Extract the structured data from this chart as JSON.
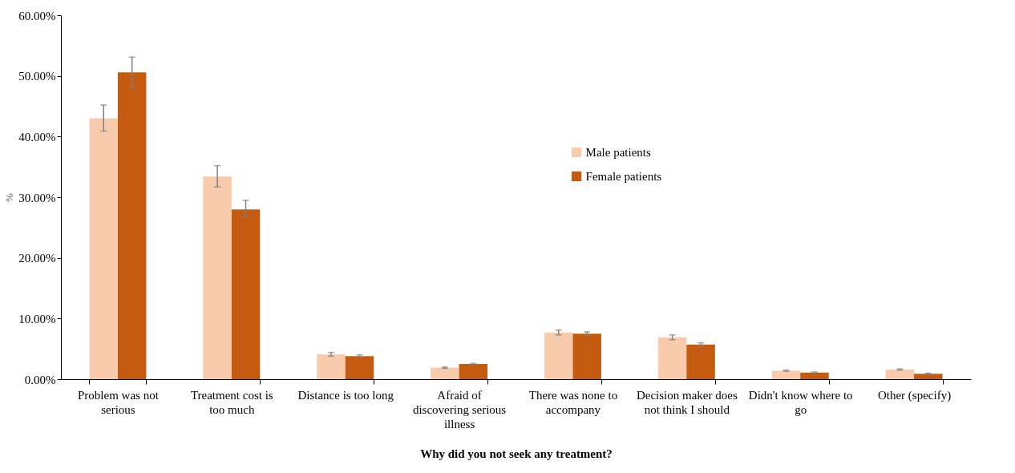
{
  "chart_data": {
    "type": "bar",
    "xlabel": "Why did you not seek any treatment?",
    "ylabel": "%",
    "categories": [
      "Problem was not serious",
      "Treatment cost is too much",
      "Distance is too long",
      "Afraid of discovering serious illness",
      "There was none to accompany",
      "Decision maker does not think I should",
      "Didn't know where to go",
      "Other (specify)"
    ],
    "series": [
      {
        "name": "Male patients",
        "color": "#f7cbab",
        "values": [
          43.0,
          33.4,
          4.1,
          1.9,
          7.7,
          6.9,
          1.4,
          1.6
        ],
        "errors": [
          [
            40.9,
            45.2
          ],
          [
            31.7,
            35.2
          ],
          0.3,
          0.1,
          0.4,
          0.4,
          0.1,
          0.1
        ]
      },
      {
        "name": "Female patients",
        "color": "#c55a11",
        "values": [
          50.6,
          28.0,
          3.8,
          2.5,
          7.5,
          5.7,
          1.1,
          0.9
        ],
        "errors": [
          [
            48.1,
            53.1
          ],
          [
            26.7,
            29.5
          ],
          0.2,
          0.1,
          0.3,
          0.3,
          0.1,
          0.1
        ]
      }
    ],
    "ylim": [
      0,
      60
    ],
    "yticks": [
      {
        "value": 0,
        "label": "0.00%"
      },
      {
        "value": 10,
        "label": "10.00%"
      },
      {
        "value": 20,
        "label": "20.00%"
      },
      {
        "value": 30,
        "label": "30.00%"
      },
      {
        "value": 40,
        "label": "40.00%"
      },
      {
        "value": 50,
        "label": "50.00%"
      },
      {
        "value": 60,
        "label": "60.00%"
      }
    ],
    "grid": false,
    "legend": "top right"
  }
}
